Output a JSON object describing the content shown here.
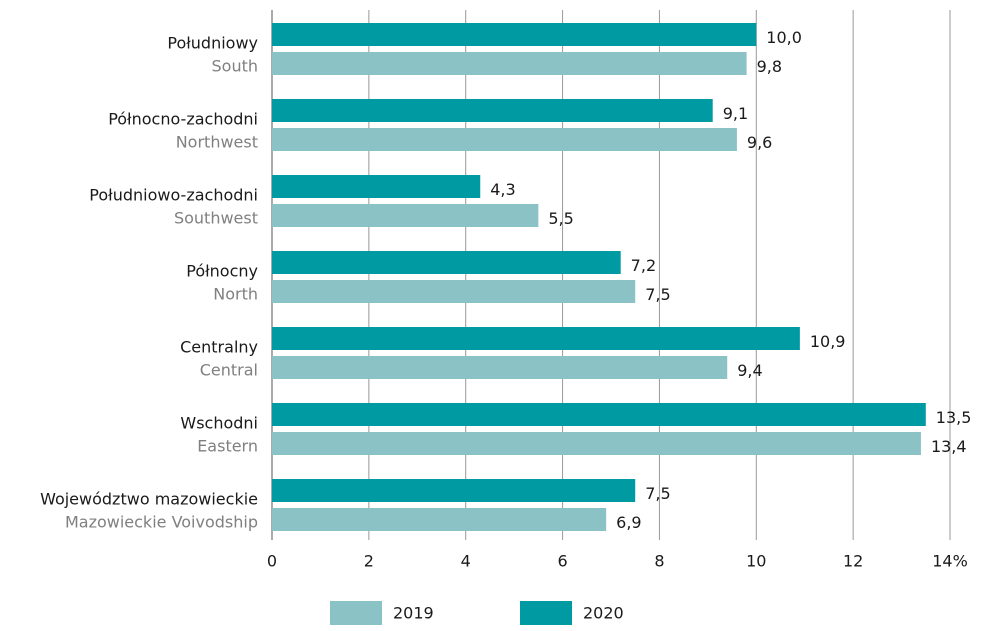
{
  "chart_data": {
    "type": "bar",
    "orientation": "horizontal",
    "categories": [
      "Południowy",
      "Północno-zachodni",
      "Południowo-zachodni",
      "Północny",
      "Centralny",
      "Wschodni",
      "Województwo mazowieckie"
    ],
    "subcategories": [
      "South",
      "Northwest",
      "Southwest",
      "North",
      "Central",
      "Eastern",
      "Mazowieckie Voivodship"
    ],
    "series": [
      {
        "name": "2019",
        "color": "#8bc2c6",
        "values": [
          9.8,
          9.6,
          5.5,
          7.5,
          9.4,
          13.4,
          6.9
        ],
        "value_labels": [
          "9,8",
          "9,6",
          "5,5",
          "7,5",
          "9,4",
          "13,4",
          "6,9"
        ]
      },
      {
        "name": "2020",
        "color": "#009aa3",
        "values": [
          10.0,
          9.1,
          4.3,
          7.2,
          10.9,
          13.5,
          7.5
        ],
        "value_labels": [
          "10,0",
          "9,1",
          "4,3",
          "7,2",
          "10,9",
          "13,5",
          "7,5"
        ]
      }
    ],
    "xlim": [
      0,
      14
    ],
    "xticks": [
      0,
      2,
      4,
      6,
      8,
      10,
      12,
      {
        "value": 14,
        "label": "14%"
      }
    ],
    "grid": true,
    "legend": "bottom"
  }
}
